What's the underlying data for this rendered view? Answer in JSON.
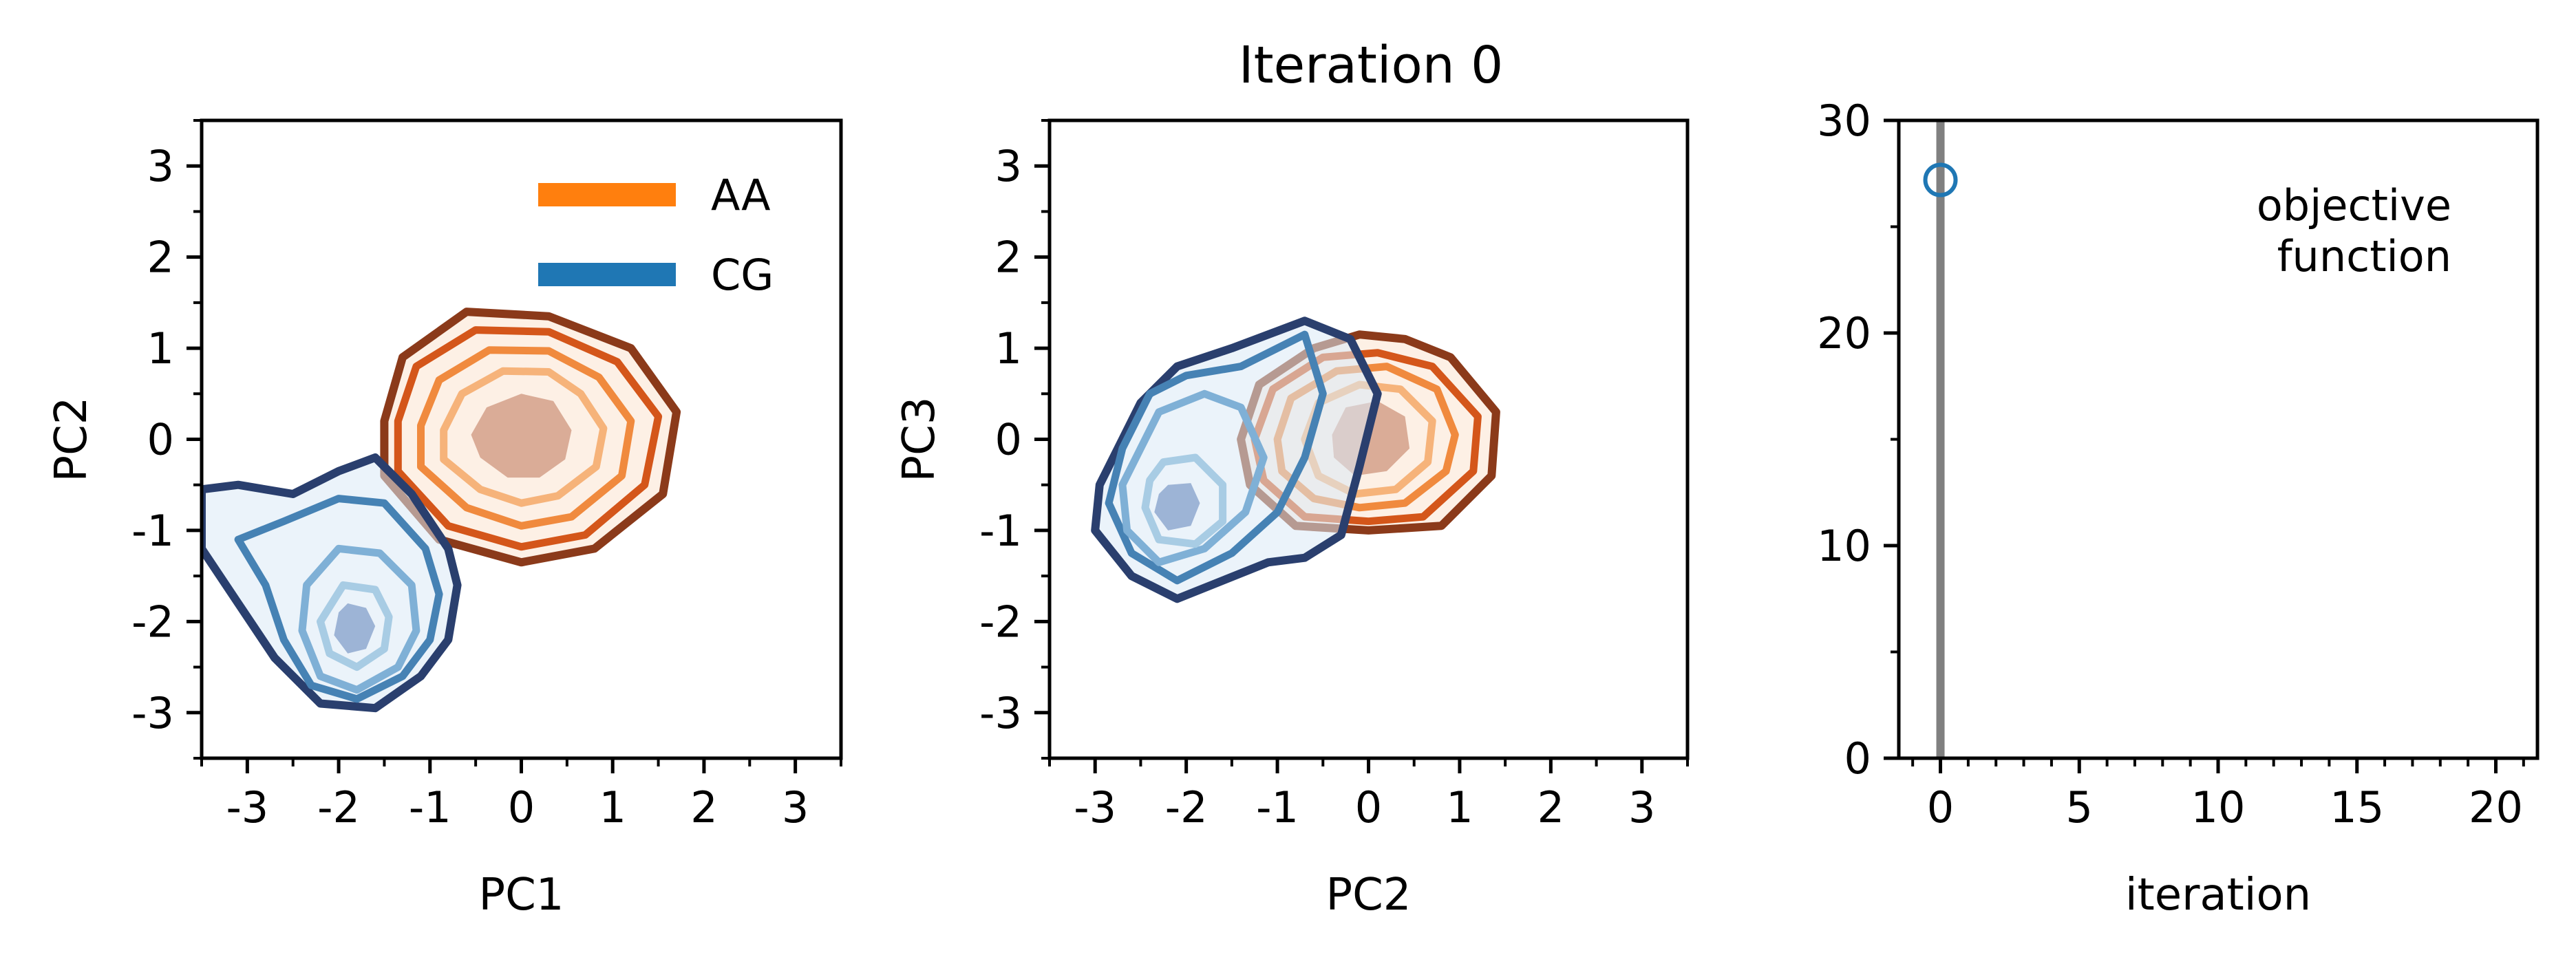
{
  "figure": {
    "title": "Iteration 0"
  },
  "chart_data": [
    {
      "type": "contour",
      "xlabel": "PC1",
      "ylabel": "PC2",
      "xlim": [
        -3.5,
        3.5
      ],
      "ylim": [
        -3.5,
        3.5
      ],
      "xticks": [
        -3,
        -2,
        -1,
        0,
        1,
        2,
        3
      ],
      "yticks": [
        -3,
        -2,
        -1,
        0,
        1,
        2,
        3
      ],
      "legend": {
        "placement": "top-right",
        "entries": [
          {
            "label": "AA",
            "color": "#ff7f0e"
          },
          {
            "label": "CG",
            "color": "#1f77b4"
          }
        ]
      },
      "series": [
        {
          "name": "AA",
          "colors": [
            "#8b3a1a",
            "#d4561a",
            "#f08a3e",
            "#f6b37a",
            "#d4a08a"
          ],
          "levels": [
            [
              [
                -1.5,
                0.2
              ],
              [
                -1.3,
                0.9
              ],
              [
                -0.6,
                1.4
              ],
              [
                0.3,
                1.35
              ],
              [
                1.2,
                1.0
              ],
              [
                1.7,
                0.3
              ],
              [
                1.55,
                -0.6
              ],
              [
                0.8,
                -1.2
              ],
              [
                0,
                -1.35
              ],
              [
                -0.9,
                -1.1
              ],
              [
                -1.5,
                -0.4
              ]
            ],
            [
              [
                -1.35,
                0.2
              ],
              [
                -1.15,
                0.8
              ],
              [
                -0.5,
                1.2
              ],
              [
                0.3,
                1.18
              ],
              [
                1.05,
                0.85
              ],
              [
                1.5,
                0.25
              ],
              [
                1.35,
                -0.5
              ],
              [
                0.7,
                -1.05
              ],
              [
                0,
                -1.18
              ],
              [
                -0.8,
                -0.95
              ],
              [
                -1.35,
                -0.35
              ]
            ],
            [
              [
                -1.1,
                0.15
              ],
              [
                -0.9,
                0.65
              ],
              [
                -0.35,
                0.98
              ],
              [
                0.3,
                0.97
              ],
              [
                0.85,
                0.68
              ],
              [
                1.2,
                0.2
              ],
              [
                1.1,
                -0.4
              ],
              [
                0.55,
                -0.85
              ],
              [
                0,
                -0.95
              ],
              [
                -0.6,
                -0.75
              ],
              [
                -1.1,
                -0.3
              ]
            ],
            [
              [
                -0.85,
                0.1
              ],
              [
                -0.65,
                0.5
              ],
              [
                -0.2,
                0.75
              ],
              [
                0.3,
                0.74
              ],
              [
                0.65,
                0.5
              ],
              [
                0.9,
                0.12
              ],
              [
                0.82,
                -0.3
              ],
              [
                0.4,
                -0.62
              ],
              [
                0,
                -0.7
              ],
              [
                -0.45,
                -0.55
              ],
              [
                -0.85,
                -0.22
              ]
            ],
            [
              [
                -0.55,
                0.05
              ],
              [
                -0.38,
                0.35
              ],
              [
                0,
                0.5
              ],
              [
                0.35,
                0.42
              ],
              [
                0.55,
                0.1
              ],
              [
                0.48,
                -0.22
              ],
              [
                0.2,
                -0.42
              ],
              [
                -0.15,
                -0.42
              ],
              [
                -0.45,
                -0.2
              ]
            ]
          ]
        },
        {
          "name": "CG",
          "colors": [
            "#2a3f6e",
            "#4682b4",
            "#7fb0d6",
            "#a8cce4",
            "#8fa8cf"
          ],
          "levels": [
            [
              [
                -3.5,
                -0.55
              ],
              [
                -3.1,
                -0.5
              ],
              [
                -2.5,
                -0.6
              ],
              [
                -2.0,
                -0.35
              ],
              [
                -1.6,
                -0.2
              ],
              [
                -1.2,
                -0.6
              ],
              [
                -0.8,
                -1.2
              ],
              [
                -0.7,
                -1.6
              ],
              [
                -0.8,
                -2.2
              ],
              [
                -1.1,
                -2.6
              ],
              [
                -1.6,
                -2.95
              ],
              [
                -2.2,
                -2.9
              ],
              [
                -2.7,
                -2.4
              ],
              [
                -3.1,
                -1.8
              ],
              [
                -3.5,
                -1.2
              ]
            ],
            [
              [
                -3.1,
                -1.1
              ],
              [
                -2.6,
                -0.9
              ],
              [
                -2.0,
                -0.65
              ],
              [
                -1.5,
                -0.7
              ],
              [
                -1.05,
                -1.2
              ],
              [
                -0.9,
                -1.7
              ],
              [
                -1.0,
                -2.2
              ],
              [
                -1.3,
                -2.6
              ],
              [
                -1.8,
                -2.85
              ],
              [
                -2.3,
                -2.7
              ],
              [
                -2.6,
                -2.2
              ],
              [
                -2.8,
                -1.6
              ]
            ],
            [
              [
                -2.0,
                -1.2
              ],
              [
                -1.55,
                -1.25
              ],
              [
                -1.2,
                -1.6
              ],
              [
                -1.15,
                -2.1
              ],
              [
                -1.35,
                -2.5
              ],
              [
                -1.8,
                -2.75
              ],
              [
                -2.2,
                -2.6
              ],
              [
                -2.4,
                -2.1
              ],
              [
                -2.35,
                -1.6
              ]
            ],
            [
              [
                -1.95,
                -1.6
              ],
              [
                -1.6,
                -1.65
              ],
              [
                -1.45,
                -1.95
              ],
              [
                -1.5,
                -2.3
              ],
              [
                -1.8,
                -2.5
              ],
              [
                -2.1,
                -2.35
              ],
              [
                -2.2,
                -2.0
              ]
            ],
            [
              [
                -1.9,
                -1.8
              ],
              [
                -1.7,
                -1.85
              ],
              [
                -1.6,
                -2.05
              ],
              [
                -1.7,
                -2.3
              ],
              [
                -1.9,
                -2.35
              ],
              [
                -2.05,
                -2.15
              ],
              [
                -2.0,
                -1.9
              ]
            ]
          ]
        }
      ]
    },
    {
      "type": "contour",
      "xlabel": "PC2",
      "ylabel": "PC3",
      "xlim": [
        -3.5,
        3.5
      ],
      "ylim": [
        -3.5,
        3.5
      ],
      "xticks": [
        -3,
        -2,
        -1,
        0,
        1,
        2,
        3
      ],
      "yticks": [
        -3,
        -2,
        -1,
        0,
        1,
        2,
        3
      ],
      "series": [
        {
          "name": "AA",
          "colors": [
            "#8b3a1a",
            "#d4561a",
            "#f08a3e",
            "#f6b37a",
            "#d4a08a"
          ],
          "levels": [
            [
              [
                -1.4,
                0.0
              ],
              [
                -1.2,
                0.6
              ],
              [
                -0.6,
                1.0
              ],
              [
                -0.1,
                1.15
              ],
              [
                0.4,
                1.1
              ],
              [
                0.9,
                0.9
              ],
              [
                1.4,
                0.3
              ],
              [
                1.35,
                -0.4
              ],
              [
                0.8,
                -0.95
              ],
              [
                0,
                -1.0
              ],
              [
                -0.8,
                -0.95
              ],
              [
                -1.3,
                -0.5
              ]
            ],
            [
              [
                -1.25,
                0.0
              ],
              [
                -1.05,
                0.55
              ],
              [
                -0.5,
                0.9
              ],
              [
                0.1,
                0.95
              ],
              [
                0.7,
                0.8
              ],
              [
                1.2,
                0.25
              ],
              [
                1.15,
                -0.35
              ],
              [
                0.6,
                -0.85
              ],
              [
                0,
                -0.9
              ],
              [
                -0.7,
                -0.85
              ],
              [
                -1.15,
                -0.45
              ]
            ],
            [
              [
                -1.0,
                0.0
              ],
              [
                -0.85,
                0.45
              ],
              [
                -0.35,
                0.75
              ],
              [
                0.2,
                0.8
              ],
              [
                0.75,
                0.55
              ],
              [
                0.95,
                0.05
              ],
              [
                0.85,
                -0.35
              ],
              [
                0.4,
                -0.7
              ],
              [
                -0.1,
                -0.75
              ],
              [
                -0.6,
                -0.65
              ],
              [
                -0.95,
                -0.35
              ]
            ],
            [
              [
                -0.7,
                0.0
              ],
              [
                -0.55,
                0.4
              ],
              [
                -0.1,
                0.6
              ],
              [
                0.35,
                0.55
              ],
              [
                0.7,
                0.2
              ],
              [
                0.65,
                -0.25
              ],
              [
                0.3,
                -0.55
              ],
              [
                -0.15,
                -0.6
              ],
              [
                -0.55,
                -0.4
              ]
            ],
            [
              [
                -0.4,
                0.05
              ],
              [
                -0.25,
                0.35
              ],
              [
                0.1,
                0.42
              ],
              [
                0.4,
                0.25
              ],
              [
                0.45,
                -0.1
              ],
              [
                0.2,
                -0.35
              ],
              [
                -0.15,
                -0.4
              ],
              [
                -0.38,
                -0.2
              ]
            ]
          ]
        },
        {
          "name": "CG",
          "colors": [
            "#2a3f6e",
            "#4682b4",
            "#7fb0d6",
            "#a8cce4",
            "#8fa8cf"
          ],
          "levels": [
            [
              [
                -2.5,
                0.4
              ],
              [
                -2.1,
                0.8
              ],
              [
                -1.5,
                1.0
              ],
              [
                -0.7,
                1.3
              ],
              [
                -0.2,
                1.1
              ],
              [
                0.1,
                0.5
              ],
              [
                -0.1,
                -0.3
              ],
              [
                -0.3,
                -1.05
              ],
              [
                -0.7,
                -1.3
              ],
              [
                -1.1,
                -1.35
              ],
              [
                -1.6,
                -1.55
              ],
              [
                -2.1,
                -1.75
              ],
              [
                -2.6,
                -1.5
              ],
              [
                -3.0,
                -1.0
              ],
              [
                -2.95,
                -0.5
              ],
              [
                -2.7,
                0.0
              ]
            ],
            [
              [
                -2.7,
                -0.1
              ],
              [
                -2.4,
                0.5
              ],
              [
                -2.0,
                0.7
              ],
              [
                -1.4,
                0.8
              ],
              [
                -0.7,
                1.15
              ],
              [
                -0.5,
                0.5
              ],
              [
                -0.7,
                -0.2
              ],
              [
                -1.0,
                -0.8
              ],
              [
                -1.5,
                -1.25
              ],
              [
                -2.1,
                -1.55
              ],
              [
                -2.6,
                -1.25
              ],
              [
                -2.85,
                -0.7
              ]
            ],
            [
              [
                -2.3,
                0.3
              ],
              [
                -1.8,
                0.5
              ],
              [
                -1.4,
                0.35
              ],
              [
                -1.15,
                -0.2
              ],
              [
                -1.35,
                -0.8
              ],
              [
                -1.8,
                -1.2
              ],
              [
                -2.3,
                -1.35
              ],
              [
                -2.65,
                -1.0
              ],
              [
                -2.7,
                -0.5
              ],
              [
                -2.5,
                -0.1
              ]
            ],
            [
              [
                -2.25,
                -0.25
              ],
              [
                -1.9,
                -0.2
              ],
              [
                -1.6,
                -0.5
              ],
              [
                -1.6,
                -0.9
              ],
              [
                -1.9,
                -1.15
              ],
              [
                -2.3,
                -1.1
              ],
              [
                -2.45,
                -0.75
              ],
              [
                -2.4,
                -0.45
              ]
            ],
            [
              [
                -2.2,
                -0.5
              ],
              [
                -1.95,
                -0.48
              ],
              [
                -1.85,
                -0.7
              ],
              [
                -1.95,
                -0.95
              ],
              [
                -2.2,
                -1.0
              ],
              [
                -2.35,
                -0.8
              ],
              [
                -2.3,
                -0.6
              ]
            ]
          ]
        }
      ]
    },
    {
      "type": "scatter",
      "xlabel": "iteration",
      "ylabel": "",
      "xlim": [
        -1.5,
        21.5
      ],
      "ylim": [
        0,
        30
      ],
      "xticks": [
        0,
        5,
        10,
        15,
        20
      ],
      "yticks": [
        0,
        10,
        20,
        30
      ],
      "annotation": "objective\nfunction",
      "annotation_lines": [
        "objective",
        "function"
      ],
      "vline_x": 0,
      "points": [
        {
          "x": 0,
          "y": 27.2
        }
      ],
      "marker_color": "#1f77b4",
      "vline_color": "#808080"
    }
  ]
}
